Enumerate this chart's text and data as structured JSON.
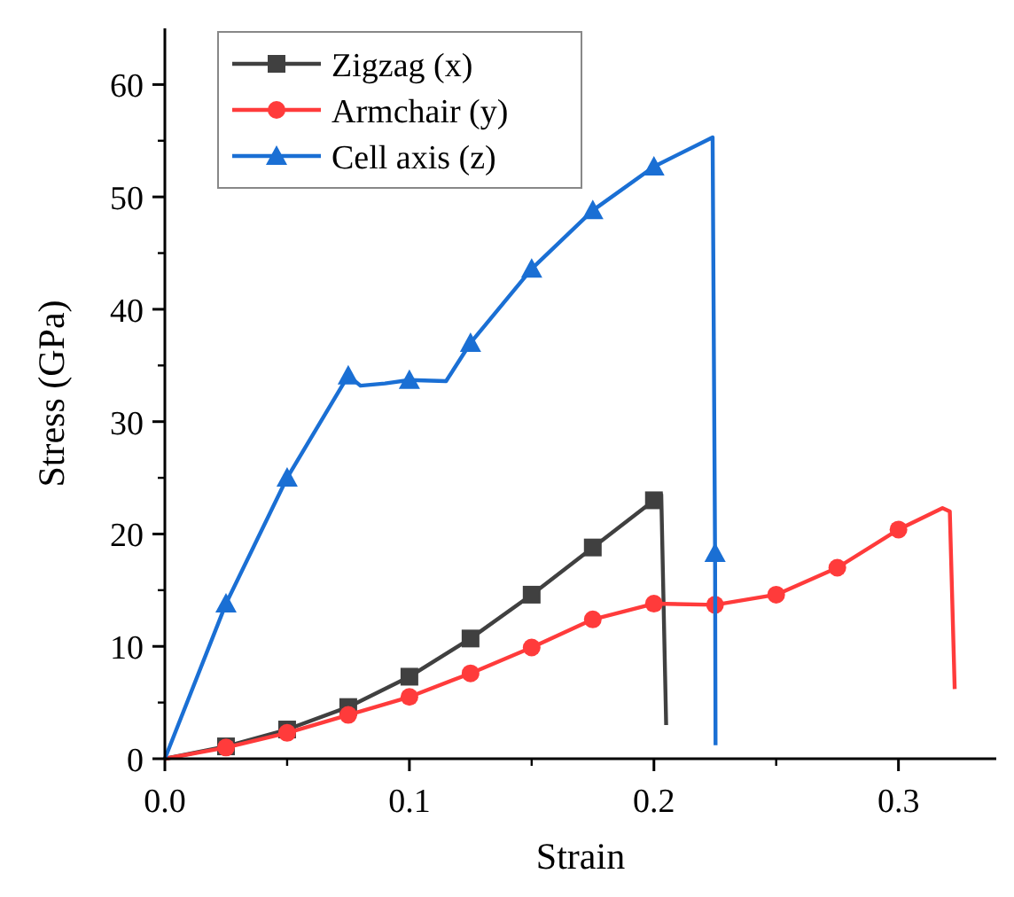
{
  "chart_data": {
    "type": "line",
    "xlabel": "Strain",
    "ylabel": "Stress (GPa)",
    "xlim": [
      0,
      0.34
    ],
    "ylim": [
      0,
      65
    ],
    "xticks": [
      {
        "value": 0,
        "label": "0.0"
      },
      0.1,
      0.2,
      0.3
    ],
    "yticks": [
      0,
      10,
      20,
      30,
      40,
      50,
      60
    ],
    "legend": "top left",
    "grid": false,
    "line_style": "solid",
    "series": [
      {
        "name": "Zigzag (x)",
        "color": "#404040",
        "marker": "square",
        "x": [
          0,
          0.025,
          0.05,
          0.075,
          0.1,
          0.125,
          0.15,
          0.175,
          0.2,
          0.203,
          0.205
        ],
        "values": [
          0,
          1.1,
          2.6,
          4.6,
          7.3,
          10.7,
          14.6,
          18.8,
          23.0,
          23.5,
          3
        ]
      },
      {
        "name": "Armchair (y)",
        "color": "#ff3b3b",
        "marker": "circle",
        "x": [
          0,
          0.025,
          0.05,
          0.075,
          0.1,
          0.125,
          0.15,
          0.175,
          0.2,
          0.225,
          0.25,
          0.275,
          0.3,
          0.318,
          0.321,
          0.323
        ],
        "values": [
          0,
          1,
          2.3,
          3.9,
          5.5,
          7.6,
          9.9,
          12.4,
          13.8,
          13.7,
          14.6,
          17,
          20.4,
          22.3,
          22,
          6.2
        ]
      },
      {
        "name": "Cell axis (z)",
        "color": "#1a6fd4",
        "marker": "triangle",
        "x": [
          0,
          0.025,
          0.05,
          0.075,
          0.08,
          0.09,
          0.1,
          0.115,
          0.125,
          0.15,
          0.175,
          0.2,
          0.224,
          0.225,
          0.2252
        ],
        "values": [
          0,
          13.8,
          25,
          34.1,
          33.2,
          33.4,
          33.7,
          33.6,
          37,
          43.6,
          48.8,
          52.7,
          55.3,
          18.3,
          1.2
        ]
      }
    ]
  }
}
